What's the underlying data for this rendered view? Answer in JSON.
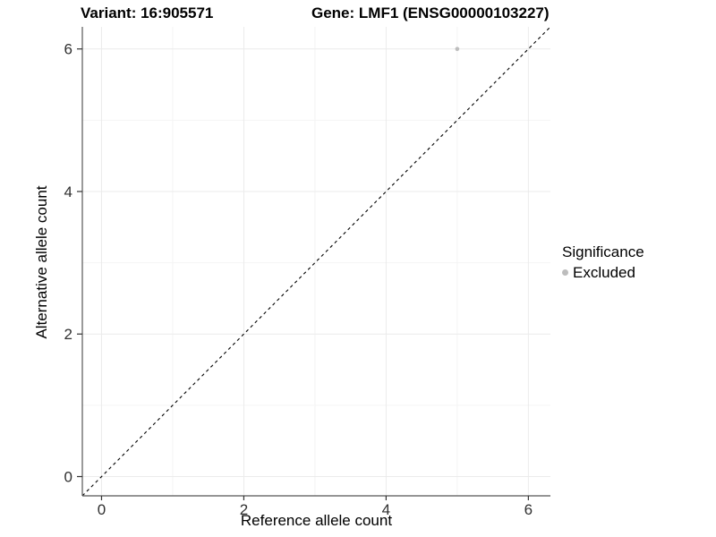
{
  "titles": {
    "variant": "Variant: 16:905571",
    "gene": "Gene: LMF1 (ENSG00000103227)"
  },
  "legend": {
    "title": "Significance",
    "items": [
      {
        "label": "Excluded",
        "color": "#bdbdbd"
      }
    ]
  },
  "chart_data": {
    "type": "scatter",
    "title": "Variant: 16:905571 | Gene: LMF1 (ENSG00000103227)",
    "xlabel": "Reference allele count",
    "ylabel": "Alternative allele count",
    "xlim": [
      -0.27,
      6.31
    ],
    "ylim": [
      -0.27,
      6.31
    ],
    "x_ticks": [
      0,
      2,
      4,
      6
    ],
    "y_ticks": [
      0,
      2,
      4,
      6
    ],
    "x_minor_ticks": [
      1,
      3,
      5
    ],
    "y_minor_ticks": [
      1,
      3,
      5
    ],
    "grid": true,
    "legend_position": "right",
    "series": [
      {
        "name": "Excluded",
        "color": "#bdbdbd",
        "points": [
          [
            5,
            6
          ]
        ],
        "point_radius": 2.3
      }
    ],
    "reference_line": {
      "type": "identity y=x",
      "from": [
        -0.27,
        -0.27
      ],
      "to": [
        6.31,
        6.31
      ],
      "style": "dashed",
      "color": "#000000"
    }
  },
  "colors": {
    "background": "#ffffff",
    "major_grid": "#ebebeb",
    "minor_grid": "#f4f4f4",
    "axis_line": "#565656",
    "tick_mark": "#333333",
    "tick_label": "#303030",
    "title_text": "#000000"
  }
}
